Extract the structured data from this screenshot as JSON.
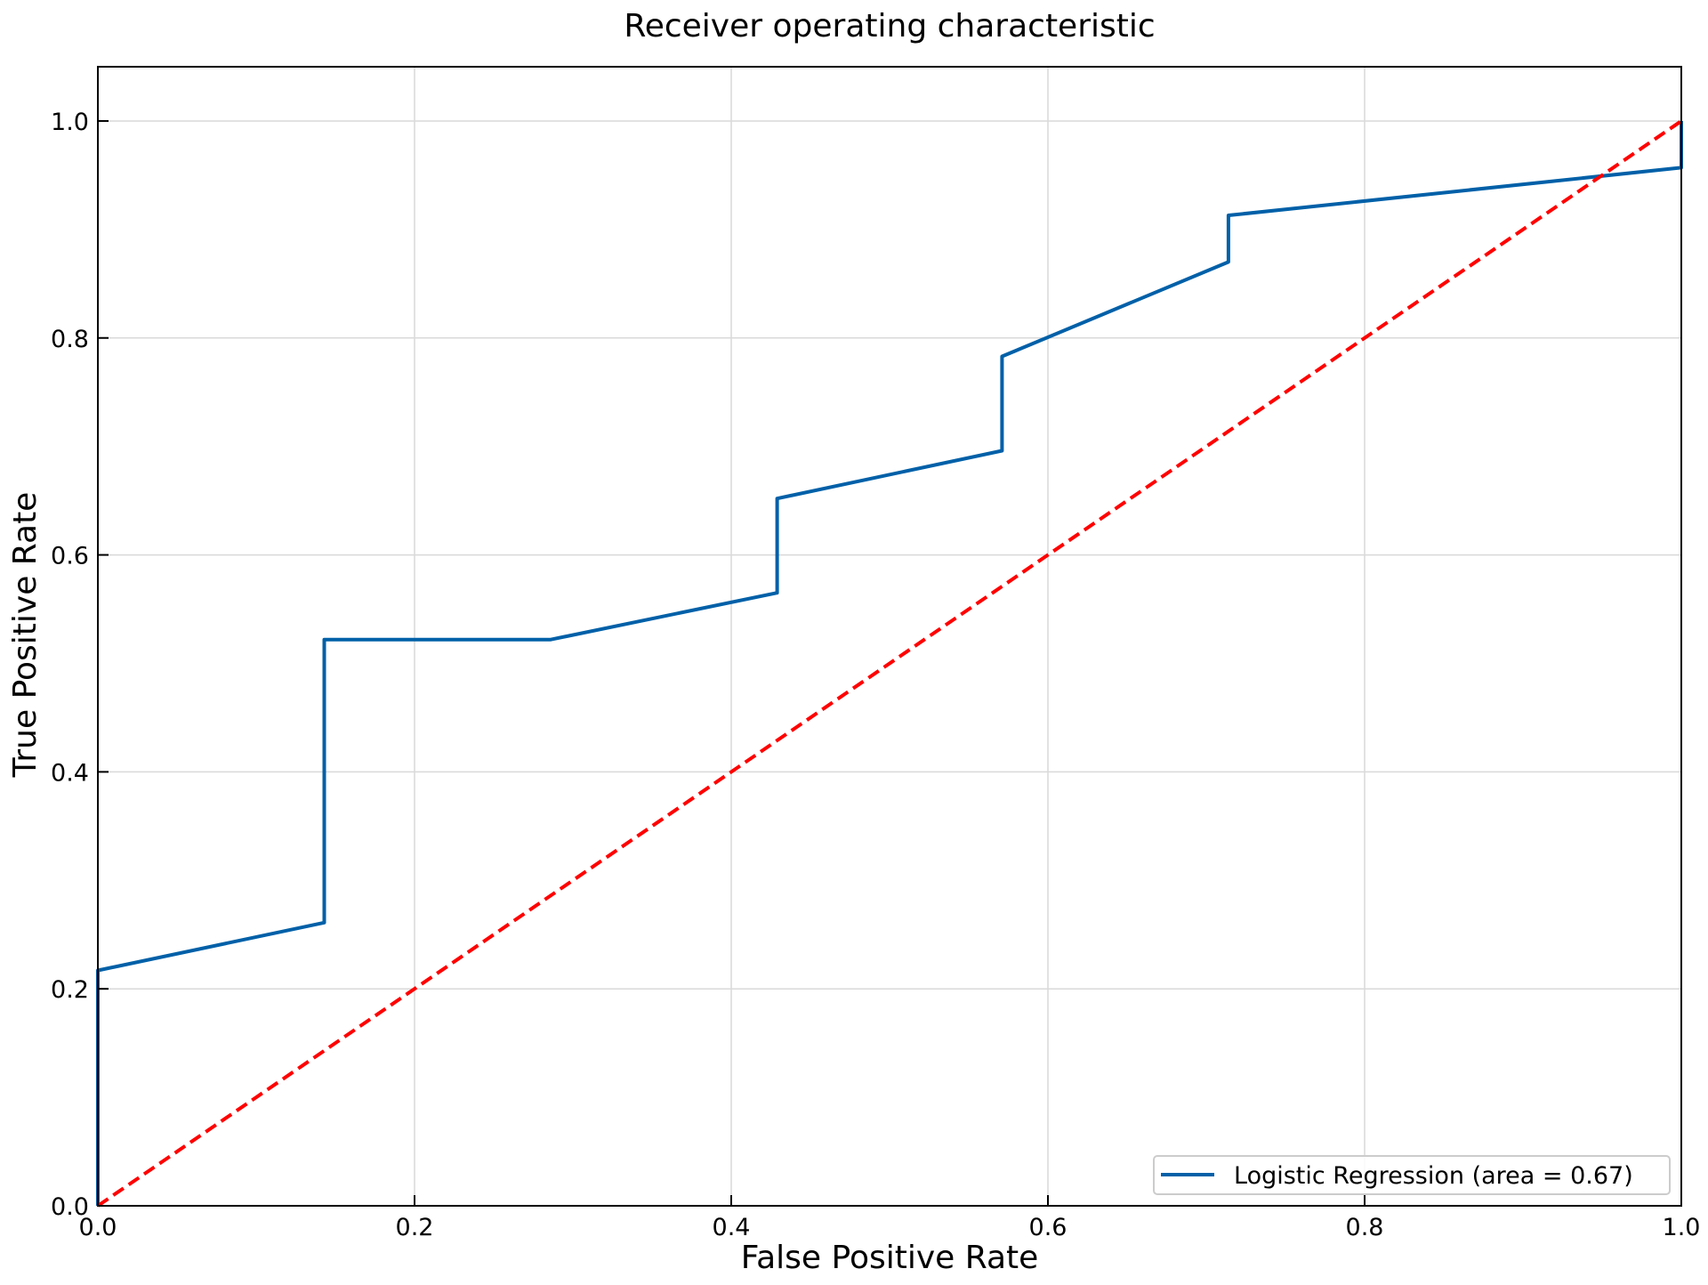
{
  "chart_data": {
    "type": "line",
    "title": "Receiver operating characteristic",
    "xlabel": "False Positive Rate",
    "ylabel": "True Positive Rate",
    "xlim": [
      0.0,
      1.0
    ],
    "ylim": [
      0.0,
      1.05
    ],
    "xticks": [
      "0.0",
      "0.2",
      "0.4",
      "0.6",
      "0.8",
      "1.0"
    ],
    "yticks": [
      "0.0",
      "0.2",
      "0.4",
      "0.6",
      "0.8",
      "1.0"
    ],
    "grid": true,
    "legend_position": "lower-right",
    "series": [
      {
        "name": "Logistic Regression (area = 0.67)",
        "color": "#0060a8",
        "style": "solid",
        "x": [
          0.0,
          0.0,
          0.143,
          0.143,
          0.286,
          0.429,
          0.429,
          0.571,
          0.571,
          0.714,
          0.714,
          1.0,
          1.0
        ],
        "y": [
          0.0,
          0.217,
          0.261,
          0.522,
          0.522,
          0.565,
          0.652,
          0.696,
          0.783,
          0.87,
          0.913,
          0.957,
          1.0
        ]
      },
      {
        "color": "#ff0000",
        "style": "dashed",
        "x": [
          0.0,
          1.0
        ],
        "y": [
          0.0,
          1.0
        ]
      }
    ]
  }
}
